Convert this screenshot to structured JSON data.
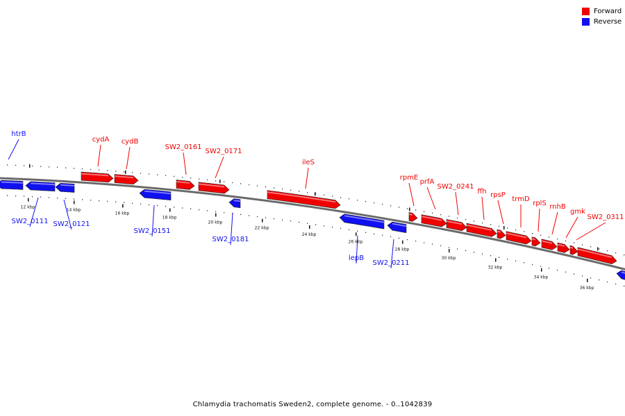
{
  "colors": {
    "forward": "#f00000",
    "reverse": "#1010f0",
    "backbone": "#7a7a7a"
  },
  "legend": [
    {
      "label": "Forward",
      "color": "#f00000"
    },
    {
      "label": "Reverse",
      "color": "#1010f0"
    }
  ],
  "caption": "Chlamydia trachomatis Sweden2, complete genome. - 0..1042839",
  "scale_ticks": [
    "12 kbp",
    "14 kbp",
    "16 kbp",
    "18 kbp",
    "20 kbp",
    "22 kbp",
    "24 kbp",
    "26 kbp",
    "28 kbp",
    "30 kbp",
    "32 kbp",
    "34 kbp",
    "36 kbp"
  ],
  "forward_genes": [
    "cydA",
    "cydB",
    "SW2_0161",
    "SW2_0171",
    "ileS",
    "rpmE",
    "prfA",
    "SW2_0241",
    "ffh",
    "rpsP",
    "trmD",
    "rplS",
    "rnhB",
    "gmk",
    "SW2_0311"
  ],
  "reverse_genes": [
    "htrB",
    "SW2_0111",
    "SW2_0121",
    "SW2_0151",
    "SW2_0181",
    "lepB",
    "SW2_0211"
  ]
}
